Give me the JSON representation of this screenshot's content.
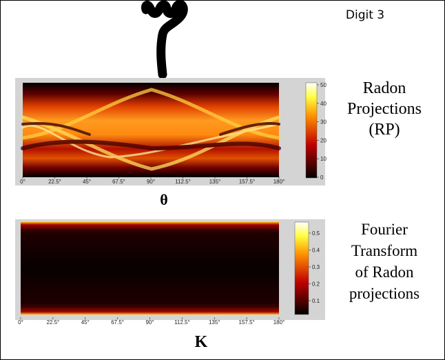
{
  "figure": {
    "digit_label": "Digit 3",
    "panels": [
      {
        "caption": [
          "Radon",
          "Projections",
          "(RP)"
        ],
        "xticks": [
          "0°",
          "22.5°",
          "45°",
          "67.5°",
          "90°",
          "112.5°",
          "135°",
          "157.5°",
          "180°"
        ],
        "colorbar_ticks": [
          "0",
          "10",
          "20",
          "30",
          "40",
          "50"
        ],
        "axis_label": "θ"
      },
      {
        "caption": [
          "Fourier",
          "Transform",
          "of Radon",
          "projections"
        ],
        "xticks": [
          "0°",
          "22.5°",
          "45°",
          "67.5°",
          "90°",
          "112.5°",
          "135°",
          "157.5°",
          "180°"
        ],
        "colorbar_ticks": [
          "0.1",
          "0.2",
          "0.3",
          "0.4",
          "0.5"
        ],
        "axis_label": "K"
      }
    ]
  }
}
